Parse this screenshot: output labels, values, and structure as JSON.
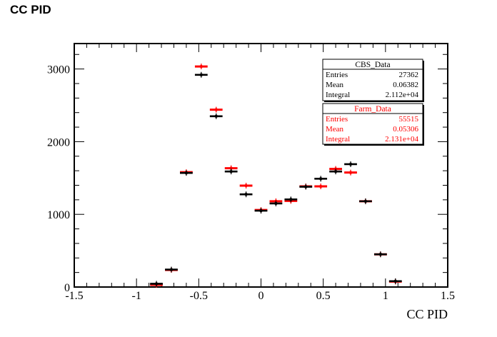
{
  "page_title": "CC PID",
  "chart_data": {
    "type": "scatter",
    "xlabel": "CC PID",
    "ylabel": "",
    "xlim": [
      -1.5,
      1.5
    ],
    "ylim": [
      0,
      3350
    ],
    "x_ticks": [
      "-1.5",
      "-1",
      "-0.5",
      "0",
      "0.5",
      "1",
      "1.5"
    ],
    "y_ticks": [
      "0",
      "1000",
      "2000",
      "3000"
    ],
    "grid": false,
    "bin_width": 0.12,
    "series": [
      {
        "name": "CBS_Data",
        "color": "#000000",
        "x": [
          -0.84,
          -0.72,
          -0.6,
          -0.48,
          -0.36,
          -0.24,
          -0.12,
          0.0,
          0.12,
          0.24,
          0.36,
          0.48,
          0.6,
          0.72,
          0.84,
          0.96,
          1.08
        ],
        "values": [
          45,
          240,
          1570,
          2920,
          2350,
          1590,
          1275,
          1050,
          1150,
          1205,
          1380,
          1490,
          1590,
          1690,
          1180,
          450,
          80
        ]
      },
      {
        "name": "Farm_Data",
        "color": "#ff0000",
        "x": [
          -0.84,
          -0.72,
          -0.6,
          -0.48,
          -0.36,
          -0.24,
          -0.12,
          0.0,
          0.12,
          0.24,
          0.36,
          0.48,
          0.6,
          0.72,
          0.84,
          0.96,
          1.08
        ],
        "values": [
          30,
          235,
          1580,
          3035,
          2440,
          1635,
          1395,
          1060,
          1180,
          1185,
          1385,
          1385,
          1625,
          1575,
          1180,
          450,
          75
        ]
      }
    ],
    "stats_boxes": [
      {
        "title": "CBS_Data",
        "color": "#000000",
        "rows": [
          {
            "label": "Entries",
            "value": "27362"
          },
          {
            "label": "Mean",
            "value": "0.06382"
          },
          {
            "label": "Integral",
            "value": "2.112e+04"
          }
        ]
      },
      {
        "title": "Farm_Data",
        "color": "#ff0000",
        "rows": [
          {
            "label": "Entries",
            "value": "55515"
          },
          {
            "label": "Mean",
            "value": "0.05306"
          },
          {
            "label": "Integral",
            "value": "2.131e+04"
          }
        ]
      }
    ]
  }
}
